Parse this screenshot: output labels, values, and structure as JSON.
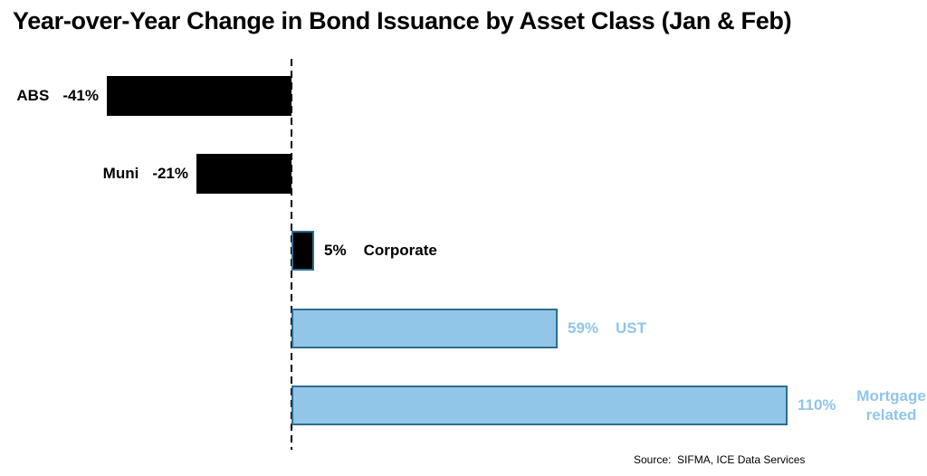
{
  "page": {
    "title": "Year-over-Year Change in Bond Issuance by Asset Class (Jan & Feb)",
    "source": "Source:  SIFMA, ICE Data Services"
  },
  "colors": {
    "negative_bar_fill": "#000000",
    "positive_bar_fill": "#92C6E8",
    "bar_border": "#2C6E92",
    "blue_label_text": "#8FC5EA",
    "black_label_text": "#000000",
    "zero_line": "#000000",
    "background": "#FFFFFF"
  },
  "chart_data": {
    "type": "bar",
    "orientation": "horizontal",
    "title": "Year-over-Year Change in Bond Issuance by Asset Class (Jan & Feb)",
    "categories": [
      "ABS",
      "Muni",
      "Corporate",
      "UST",
      "Mortgage related"
    ],
    "values": [
      -41,
      -21,
      5,
      59,
      110
    ],
    "value_labels": [
      "-41%",
      "-21%",
      "5%",
      "59%",
      "110%"
    ],
    "label_side": [
      "left",
      "left",
      "right",
      "right",
      "right"
    ],
    "bar_styles": [
      "black",
      "black",
      "black-blue-border",
      "blue",
      "blue"
    ],
    "label_colors": [
      "black",
      "black",
      "black",
      "blue",
      "blue"
    ],
    "xlim": [
      -62,
      140
    ],
    "zero_line_style": "dashed",
    "grid": false,
    "legend": false,
    "source": "Source:  SIFMA, ICE Data Services"
  }
}
